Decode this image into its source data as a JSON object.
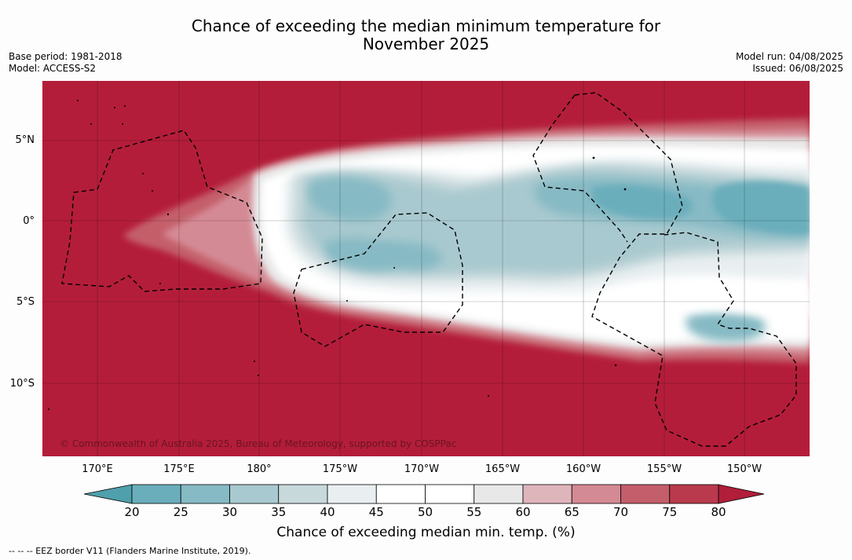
{
  "title": {
    "line1": "Chance of exceeding the median minimum temperature for",
    "line2": "November 2025"
  },
  "meta_left": {
    "base_period": "Base period: 1981-2018",
    "model": "Model: ACCESS-S2"
  },
  "meta_right": {
    "model_run": "Model run: 04/08/2025",
    "issued": "Issued: 06/08/2025"
  },
  "map": {
    "lat_labels": [
      "5°N",
      "0°",
      "5°S",
      "10°S"
    ],
    "lon_labels": [
      "170°E",
      "175°E",
      "180°",
      "175°W",
      "170°W",
      "165°W",
      "160°W",
      "155°W",
      "150°W"
    ],
    "copyright": "© Commonwealth of Australia 2025, Bureau of Meteorology, supported by COSPPac"
  },
  "colorbar": {
    "ticks": [
      "20",
      "25",
      "30",
      "35",
      "40",
      "45",
      "50",
      "55",
      "60",
      "65",
      "70",
      "75",
      "80"
    ],
    "title": "Chance of exceeding median min. temp. (%)",
    "colors": [
      "#4fa0ac",
      "#6aaebb",
      "#86bac4",
      "#a8c9cf",
      "#c8d9dc",
      "#e9eff1",
      "#ffffff",
      "#ffffff",
      "#e8e8e8",
      "#dfb5bc",
      "#d48a94",
      "#c45e6b",
      "#b93a4c",
      "#b01e3a"
    ]
  },
  "footnote": "--  --  -- EEZ border V11 (Flanders Marine Institute, 2019).",
  "palette": {
    "warm": "#b41d3a",
    "white": "#ffffff",
    "cool": "#6aaebb"
  }
}
